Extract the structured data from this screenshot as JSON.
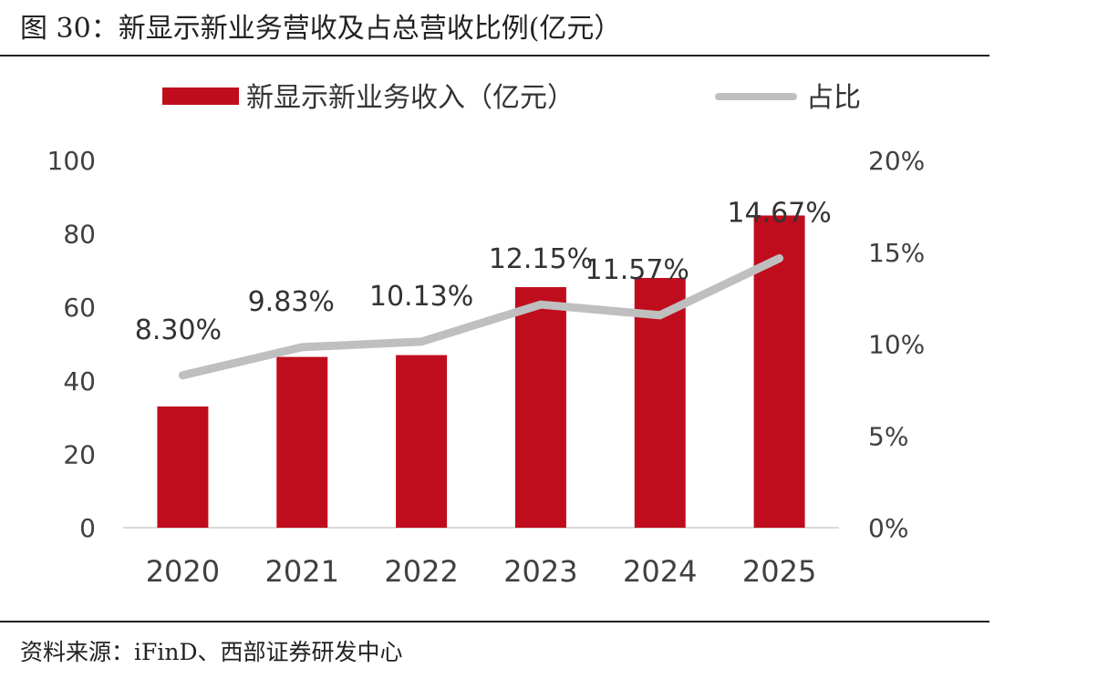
{
  "figure": {
    "title": "图 30：新显示新业务营收及占总营收比例(亿元）",
    "source": "资料来源：iFinD、西部证券研发中心"
  },
  "colors": {
    "bar": "#c00d1e",
    "line": "#bfbfbf",
    "axis": "#d9d9d9"
  },
  "chart_data": {
    "type": "bar",
    "categories": [
      "2020",
      "2021",
      "2022",
      "2023",
      "2024",
      "2025"
    ],
    "series": [
      {
        "name": "新显示新业务收入（亿元）",
        "type": "bar",
        "axis": "left",
        "values": [
          33,
          46.5,
          47,
          65.5,
          68,
          85
        ]
      },
      {
        "name": "占比",
        "type": "line",
        "axis": "right",
        "values": [
          8.3,
          9.83,
          10.13,
          12.15,
          11.57,
          14.67
        ],
        "labels": [
          "8.30%",
          "9.83%",
          "10.13%",
          "12.15%",
          "11.57%",
          "14.67%"
        ]
      }
    ],
    "ylim_left": [
      0,
      100
    ],
    "yticks_left": [
      "0",
      "20",
      "40",
      "60",
      "80",
      "100"
    ],
    "ylim_right": [
      0,
      20
    ],
    "yticks_right": [
      "0%",
      "5%",
      "10%",
      "15%",
      "20%"
    ],
    "legend": "top",
    "grid": false
  }
}
